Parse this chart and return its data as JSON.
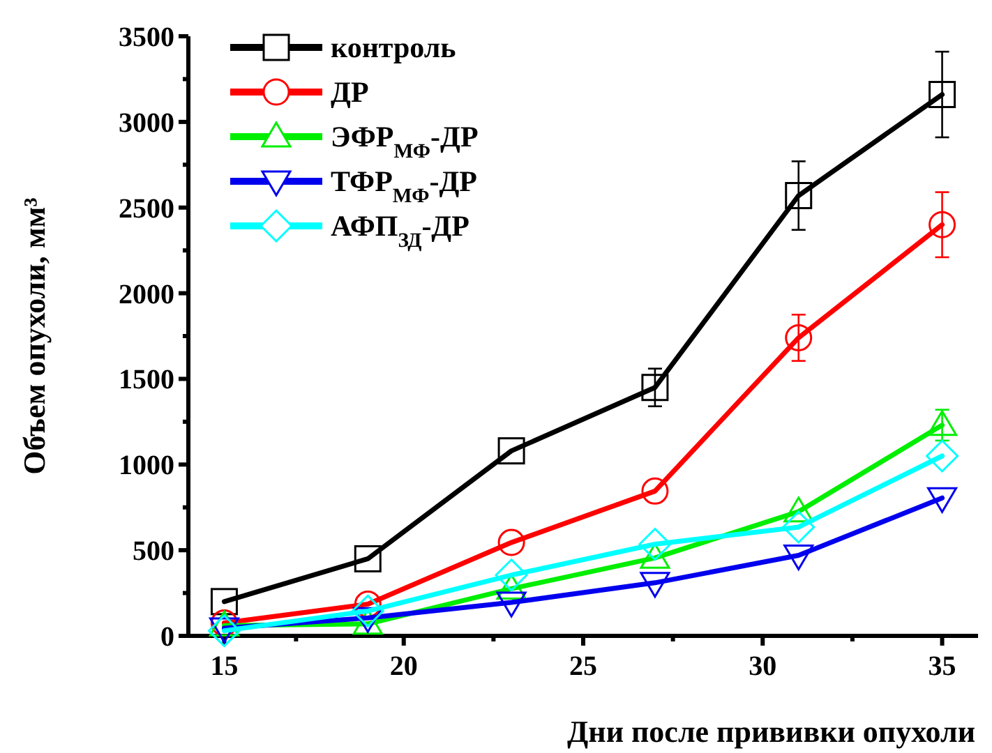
{
  "chart_data": {
    "type": "line",
    "xlabel": "Дни после прививки опухоли",
    "ylabel": "Объем опухоли, мм³",
    "x": [
      15,
      19,
      23,
      27,
      31,
      35
    ],
    "xlim": [
      14,
      36
    ],
    "xticks": [
      15,
      {
        "value": 17,
        "label": null
      },
      20,
      {
        "value": 22.5,
        "label": null
      },
      25,
      {
        "value": 27.5,
        "label": null
      },
      30,
      {
        "value": 32.5,
        "label": null
      },
      35
    ],
    "ylim": [
      0,
      3500
    ],
    "yticks": [
      0,
      {
        "value": 250,
        "label": null
      },
      500,
      {
        "value": 750,
        "label": null
      },
      1000,
      {
        "value": 1250,
        "label": null
      },
      1500,
      {
        "value": 1750,
        "label": null
      },
      2000,
      {
        "value": 2250,
        "label": null
      },
      2500,
      {
        "value": 2750,
        "label": null
      },
      3000,
      {
        "value": 3250,
        "label": null
      },
      3500
    ],
    "legend": "top left",
    "grid": false,
    "line_style": "solid",
    "series": [
      {
        "name": "контроль",
        "color": "#000000",
        "marker": "square",
        "values": [
          200,
          450,
          1080,
          1450,
          2570,
          3160
        ],
        "errors": [
          null,
          null,
          null,
          110,
          200,
          250
        ]
      },
      {
        "name": "ДР",
        "color": "#ff0000",
        "marker": "circle",
        "values": [
          75,
          185,
          545,
          845,
          1740,
          2400
        ],
        "errors": [
          null,
          null,
          null,
          null,
          135,
          190
        ]
      },
      {
        "name": "ЭФР$_{МФ}$-ДР",
        "color": "#00ee00",
        "marker": "triangle",
        "values": [
          60,
          70,
          275,
          455,
          725,
          1230
        ],
        "errors": [
          null,
          null,
          null,
          null,
          null,
          90
        ]
      },
      {
        "name": "ТФР$_{МФ}$-ДР",
        "color": "#0000ee",
        "marker": "triangle-down",
        "values": [
          45,
          105,
          195,
          310,
          470,
          805
        ]
      },
      {
        "name": "АФП$_{ЗД}$-ДР",
        "color": "#00ffff",
        "marker": "diamond",
        "values": [
          30,
          145,
          355,
          535,
          635,
          1050
        ]
      }
    ]
  }
}
